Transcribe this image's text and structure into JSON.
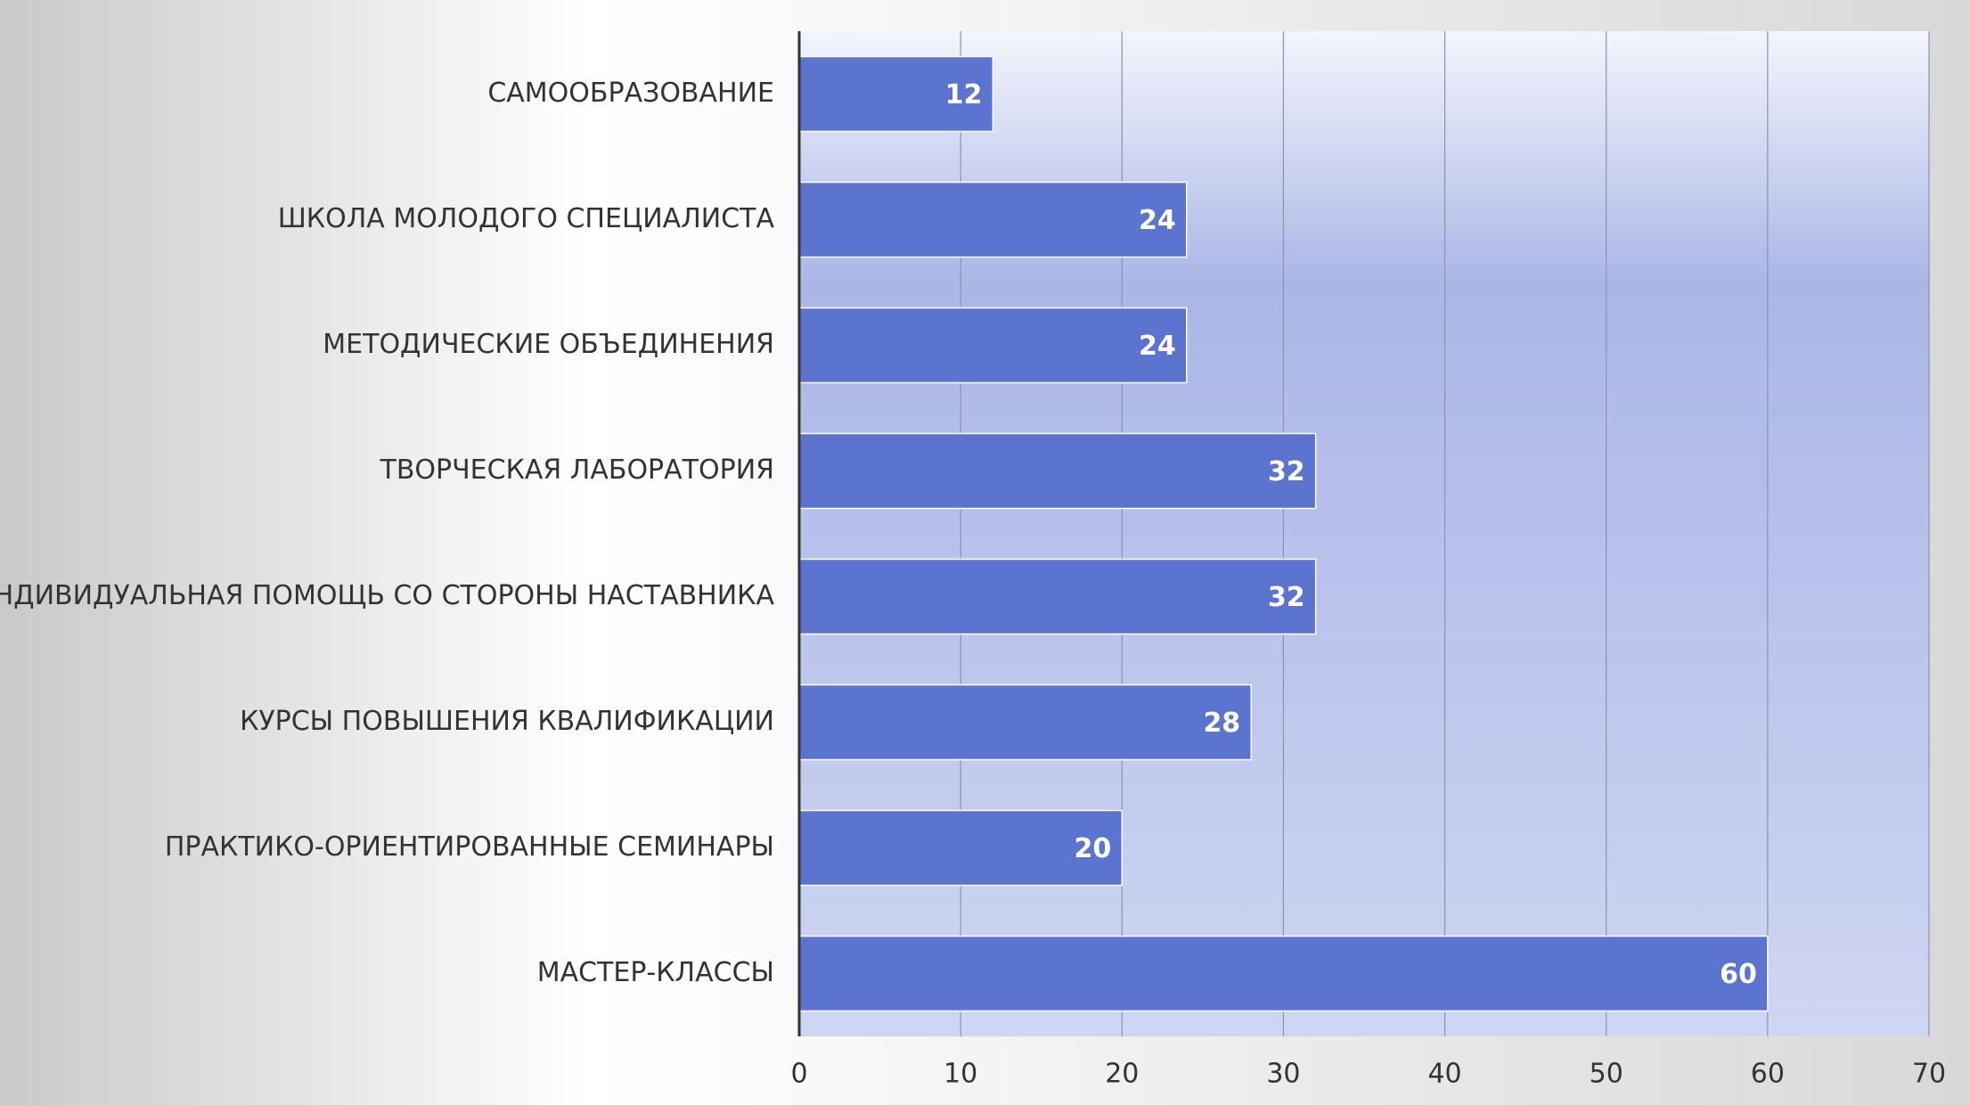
{
  "chart_data": {
    "type": "bar",
    "orientation": "horizontal",
    "categories": [
      "САМООБРАЗОВАНИЕ",
      "ШКОЛА МОЛОДОГО СПЕЦИАЛИСТА",
      "МЕТОДИЧЕСКИЕ ОБЪЕДИНЕНИЯ",
      "ТВОРЧЕСКАЯ ЛАБОРАТОРИЯ",
      "ИНДИВИДУАЛЬНАЯ ПОМОЩЬ СО СТОРОНЫ НАСТАВНИКА",
      "КУРСЫ ПОВЫШЕНИЯ КВАЛИФИКАЦИИ",
      "ПРАКТИКО-ОРИЕНТИРОВАННЫЕ СЕМИНАРЫ",
      "МАСТЕР-КЛАССЫ"
    ],
    "values": [
      12,
      24,
      24,
      32,
      32,
      28,
      20,
      60
    ],
    "color": "#5b74cf",
    "xlim": [
      0,
      70
    ],
    "xticks": [
      0,
      10,
      20,
      30,
      40,
      50,
      60,
      70
    ],
    "grid": true
  }
}
